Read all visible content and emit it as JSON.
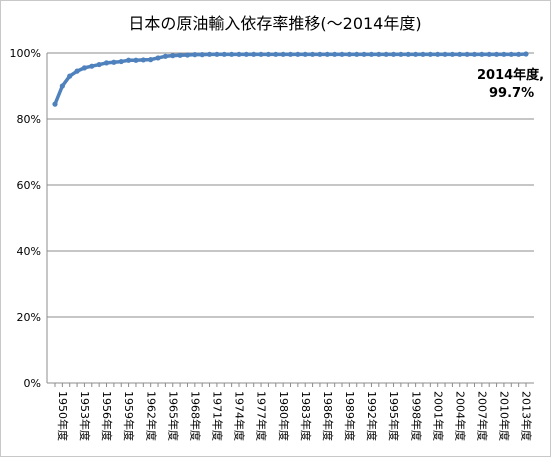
{
  "chart_data": {
    "type": "line",
    "title": "日本の原油輸入依存率推移(～2014年度)",
    "xlabel": "",
    "ylabel": "",
    "ylim": [
      0,
      100
    ],
    "yticks": [
      "0%",
      "20%",
      "40%",
      "60%",
      "80%",
      "100%"
    ],
    "grid": true,
    "legend": "none",
    "x": [
      1950,
      1951,
      1952,
      1953,
      1954,
      1955,
      1956,
      1957,
      1958,
      1959,
      1960,
      1961,
      1962,
      1963,
      1964,
      1965,
      1966,
      1967,
      1968,
      1969,
      1970,
      1971,
      1972,
      1973,
      1974,
      1975,
      1976,
      1977,
      1978,
      1979,
      1980,
      1981,
      1982,
      1983,
      1984,
      1985,
      1986,
      1987,
      1988,
      1989,
      1990,
      1991,
      1992,
      1993,
      1994,
      1995,
      1996,
      1997,
      1998,
      1999,
      2000,
      2001,
      2002,
      2003,
      2004,
      2005,
      2006,
      2007,
      2008,
      2009,
      2010,
      2011,
      2012,
      2013,
      2014
    ],
    "xtick_labels": [
      "1950年度",
      "1953年度",
      "1956年度",
      "1959年度",
      "1962年度",
      "1965年度",
      "1968年度",
      "1971年度",
      "1974年度",
      "1977年度",
      "1980年度",
      "1983年度",
      "1986年度",
      "1989年度",
      "1992年度",
      "1995年度",
      "1998年度",
      "2001年度",
      "2004年度",
      "2007年度",
      "2010年度",
      "2013年度"
    ],
    "series": [
      {
        "color": "#4f81bd",
        "values": [
          84.5,
          90.0,
          93.0,
          94.5,
          95.5,
          96.0,
          96.5,
          97.0,
          97.2,
          97.4,
          97.8,
          97.8,
          97.9,
          98.0,
          98.5,
          99.0,
          99.2,
          99.3,
          99.4,
          99.5,
          99.5,
          99.6,
          99.6,
          99.6,
          99.6,
          99.6,
          99.6,
          99.6,
          99.6,
          99.6,
          99.6,
          99.6,
          99.6,
          99.6,
          99.6,
          99.6,
          99.6,
          99.6,
          99.6,
          99.6,
          99.6,
          99.6,
          99.6,
          99.6,
          99.6,
          99.6,
          99.6,
          99.6,
          99.6,
          99.6,
          99.6,
          99.6,
          99.6,
          99.6,
          99.6,
          99.6,
          99.6,
          99.6,
          99.6,
          99.6,
          99.6,
          99.6,
          99.6,
          99.6,
          99.7
        ]
      }
    ],
    "annotation": {
      "line1": "2014年度,",
      "line2": "99.7%"
    }
  }
}
